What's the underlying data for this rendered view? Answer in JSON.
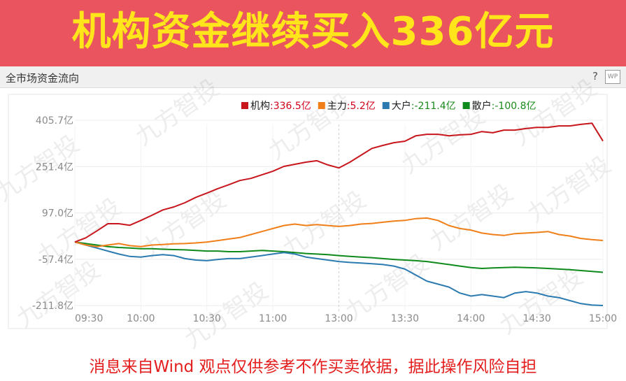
{
  "header": {
    "title": "机构资金继续买入336亿元"
  },
  "panel": {
    "title": "全市场资金流向",
    "help": "?",
    "icon": "WP"
  },
  "footer": "消息来自Wind 观点仅供参考不作买卖依据，据此操作风险自担",
  "watermark": "九方智投",
  "chart_data": {
    "type": "line",
    "x": [
      0,
      5,
      10,
      15,
      20,
      25,
      30,
      35,
      40,
      45,
      50,
      55,
      60,
      65,
      70,
      75,
      80,
      85,
      90,
      95,
      100,
      105,
      110,
      115,
      120,
      125,
      130,
      135,
      140,
      145,
      150,
      155,
      160,
      165,
      170,
      175,
      180,
      185,
      190,
      195,
      200,
      205,
      210,
      215,
      220,
      225,
      230,
      235,
      240
    ],
    "xlim": [
      0,
      240
    ],
    "xticks": [
      {
        "value": 0,
        "label": "09:30"
      },
      {
        "value": 30,
        "label": "10:00"
      },
      {
        "value": 60,
        "label": "10:30"
      },
      {
        "value": 90,
        "label": "11:00"
      },
      {
        "value": 120,
        "label": "13:00"
      },
      {
        "value": 150,
        "label": "13:30"
      },
      {
        "value": 180,
        "label": "14:00"
      },
      {
        "value": 210,
        "label": "14:30"
      },
      {
        "value": 240,
        "label": "15:00"
      }
    ],
    "ylim": [
      -230,
      457
    ],
    "yticks": [
      {
        "value": 405.7,
        "label": "405.7亿"
      },
      {
        "value": 251.4,
        "label": "251.4亿"
      },
      {
        "value": 97.0,
        "label": "97.0亿"
      },
      {
        "value": -57.4,
        "label": "-57.4亿"
      },
      {
        "value": -211.8,
        "label": "-211.8亿"
      }
    ],
    "grid": true,
    "series": [
      {
        "name": "机构",
        "color": "#c8161d",
        "total_label": ":336.5亿",
        "total_color": "#d0021b",
        "values": [
          0,
          14,
          37,
          61,
          61,
          56,
          72,
          89,
          107,
          117,
          131,
          149,
          163,
          178,
          191,
          205,
          212,
          224,
          236,
          252,
          259,
          266,
          271,
          257,
          247,
          266,
          289,
          312,
          322,
          331,
          336,
          354,
          359,
          359,
          354,
          357,
          359,
          368,
          364,
          373,
          373,
          378,
          382,
          382,
          387,
          387,
          392,
          396,
          336.5
        ]
      },
      {
        "name": "主力",
        "color": "#f07f19",
        "total_label": ":5.2亿",
        "total_color": "#d0021b",
        "values": [
          0,
          -10,
          -15,
          -10,
          -5,
          -12,
          -15,
          -10,
          -8,
          -6,
          -5,
          -3,
          0,
          5,
          10,
          15,
          25,
          35,
          45,
          55,
          60,
          55,
          58,
          55,
          52,
          55,
          60,
          62,
          66,
          70,
          72,
          78,
          80,
          72,
          55,
          45,
          40,
          30,
          25,
          22,
          28,
          30,
          32,
          35,
          25,
          20,
          12,
          8,
          5.2
        ]
      },
      {
        "name": "大户",
        "color": "#2b7bb0",
        "total_label": ":-211.4亿",
        "total_color": "#1a8a1a",
        "values": [
          0,
          -10,
          -20,
          -30,
          -40,
          -48,
          -50,
          -45,
          -42,
          -45,
          -55,
          -60,
          -62,
          -58,
          -55,
          -55,
          -50,
          -45,
          -40,
          -35,
          -40,
          -50,
          -55,
          -60,
          -65,
          -68,
          -70,
          -72,
          -75,
          -80,
          -90,
          -110,
          -130,
          -140,
          -150,
          -170,
          -180,
          -175,
          -180,
          -185,
          -170,
          -165,
          -170,
          -180,
          -185,
          -195,
          -205,
          -210,
          -211.4
        ]
      },
      {
        "name": "散户",
        "color": "#0f8a1c",
        "total_label": ":-100.8亿",
        "total_color": "#1a8a1a",
        "values": [
          0,
          -5,
          -10,
          -15,
          -18,
          -20,
          -22,
          -22,
          -24,
          -25,
          -26,
          -28,
          -30,
          -30,
          -32,
          -32,
          -30,
          -28,
          -30,
          -32,
          -35,
          -38,
          -40,
          -42,
          -45,
          -48,
          -50,
          -52,
          -55,
          -58,
          -60,
          -62,
          -65,
          -70,
          -75,
          -80,
          -85,
          -88,
          -86,
          -85,
          -84,
          -85,
          -86,
          -88,
          -90,
          -92,
          -95,
          -98,
          -100.8
        ]
      }
    ]
  }
}
